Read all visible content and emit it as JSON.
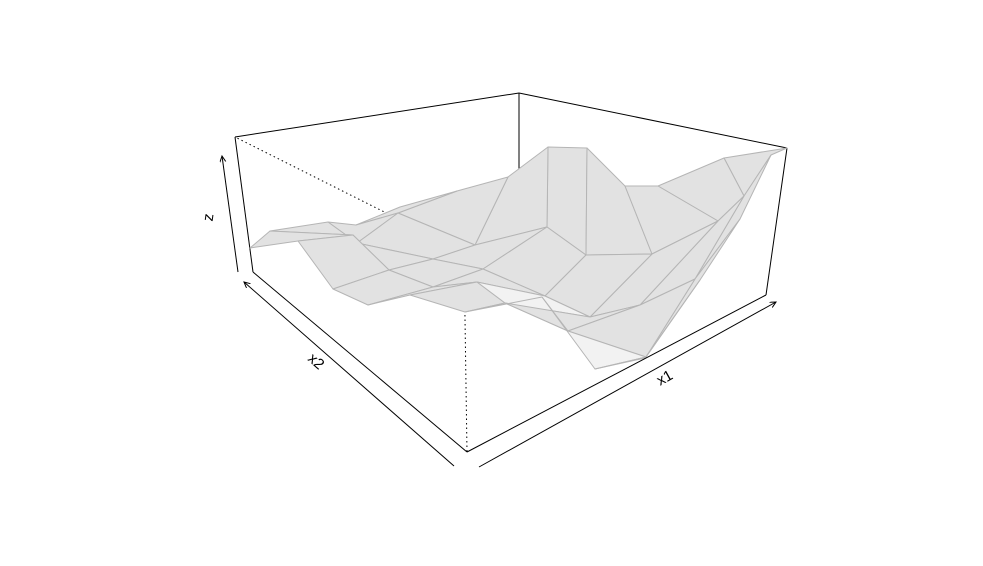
{
  "chart_data": {
    "type": "surface",
    "title": "",
    "xlabel": "x1",
    "ylabel": "x2",
    "zlabel": "z",
    "box": true,
    "axes_style": "arrows",
    "colors": {
      "facet_fill": "#f2f2f2",
      "facet_stroke": "#b5b5b5",
      "box": "#000000",
      "background": "#ffffff"
    },
    "grid_rows": 4,
    "grid_cols": 8
  }
}
